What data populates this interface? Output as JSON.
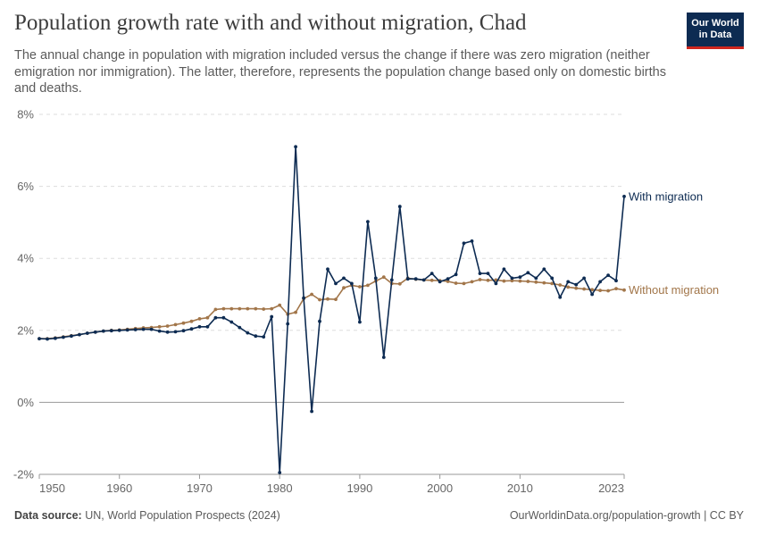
{
  "header": {
    "title": "Population growth rate with and without migration, Chad",
    "subtitle": "The annual change in population with migration included versus the change if there was zero migration (neither emigration nor immigration). The latter, therefore, represents the population change based only on domestic births and deaths.",
    "logo_line1": "Our World",
    "logo_line2": "in Data"
  },
  "footer": {
    "source_label": "Data source:",
    "source_text": "UN, World Population Prospects (2024)",
    "url": "OurWorldinData.org/population-growth | CC BY"
  },
  "colors": {
    "with_migration": "#0d2b52",
    "without_migration": "#a2764a",
    "grid": "#dddddd",
    "axis_text": "#666666"
  },
  "chart_data": {
    "type": "line",
    "title": "Population growth rate with and without migration, Chad",
    "ylim": [
      -2,
      8
    ],
    "xlim": [
      1950,
      2023
    ],
    "yticks": [
      -2,
      0,
      2,
      4,
      6,
      8
    ],
    "ytick_labels": [
      "-2%",
      "0%",
      "2%",
      "4%",
      "6%",
      "8%"
    ],
    "xticks": [
      1950,
      1960,
      1970,
      1980,
      1990,
      2000,
      2010,
      2023
    ],
    "xtick_labels": [
      "1950",
      "1960",
      "1970",
      "1980",
      "1990",
      "2000",
      "2010",
      "2023"
    ],
    "grid": true,
    "x": [
      1950,
      1951,
      1952,
      1953,
      1954,
      1955,
      1956,
      1957,
      1958,
      1959,
      1960,
      1961,
      1962,
      1963,
      1964,
      1965,
      1966,
      1967,
      1968,
      1969,
      1970,
      1971,
      1972,
      1973,
      1974,
      1975,
      1976,
      1977,
      1978,
      1979,
      1980,
      1981,
      1982,
      1983,
      1984,
      1985,
      1986,
      1987,
      1988,
      1989,
      1990,
      1991,
      1992,
      1993,
      1994,
      1995,
      1996,
      1997,
      1998,
      1999,
      2000,
      2001,
      2002,
      2003,
      2004,
      2005,
      2006,
      2007,
      2008,
      2009,
      2010,
      2011,
      2012,
      2013,
      2014,
      2015,
      2016,
      2017,
      2018,
      2019,
      2020,
      2021,
      2022,
      2023
    ],
    "series": [
      {
        "name": "With migration",
        "values": [
          1.77,
          1.76,
          1.78,
          1.81,
          1.84,
          1.88,
          1.92,
          1.95,
          1.98,
          1.99,
          2.0,
          2.01,
          2.02,
          2.03,
          2.03,
          1.98,
          1.95,
          1.96,
          1.99,
          2.04,
          2.1,
          2.1,
          2.35,
          2.35,
          2.23,
          2.08,
          1.93,
          1.84,
          1.82,
          2.38,
          -1.95,
          2.18,
          7.1,
          2.9,
          -0.25,
          2.25,
          3.7,
          3.3,
          3.45,
          3.3,
          2.23,
          5.02,
          3.45,
          1.25,
          3.4,
          5.44,
          3.43,
          3.43,
          3.4,
          3.58,
          3.35,
          3.43,
          3.55,
          4.42,
          4.48,
          3.58,
          3.58,
          3.3,
          3.7,
          3.45,
          3.48,
          3.6,
          3.45,
          3.7,
          3.45,
          2.92,
          3.35,
          3.27,
          3.45,
          3.0,
          3.35,
          3.53,
          3.38,
          5.72
        ]
      },
      {
        "name": "Without migration",
        "values": [
          1.77,
          1.77,
          1.79,
          1.82,
          1.85,
          1.88,
          1.92,
          1.95,
          1.98,
          2.0,
          2.01,
          2.03,
          2.05,
          2.07,
          2.08,
          2.1,
          2.12,
          2.16,
          2.2,
          2.25,
          2.32,
          2.35,
          2.58,
          2.6,
          2.6,
          2.6,
          2.6,
          2.6,
          2.59,
          2.6,
          2.7,
          2.45,
          2.5,
          2.88,
          3.0,
          2.85,
          2.87,
          2.86,
          3.18,
          3.25,
          3.21,
          3.25,
          3.37,
          3.48,
          3.3,
          3.29,
          3.45,
          3.42,
          3.4,
          3.39,
          3.38,
          3.36,
          3.31,
          3.3,
          3.35,
          3.41,
          3.39,
          3.4,
          3.37,
          3.38,
          3.37,
          3.36,
          3.34,
          3.32,
          3.3,
          3.26,
          3.2,
          3.17,
          3.15,
          3.13,
          3.11,
          3.1,
          3.16,
          3.12
        ]
      }
    ]
  }
}
